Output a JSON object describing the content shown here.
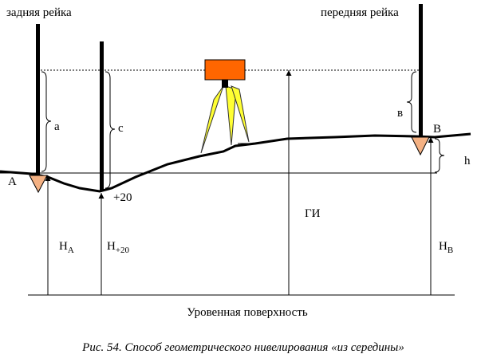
{
  "labels": {
    "back_rod": "задняя рейка",
    "front_rod": "передняя рейка",
    "a": "а",
    "c": "с",
    "b": "в",
    "point_b": "В",
    "point_a": "А",
    "h": "h",
    "plus20": "+20",
    "gi": "ГИ",
    "h_a": {
      "main": "Н",
      "sub": "А"
    },
    "h_20": {
      "main": "Н",
      "sub": "+20"
    },
    "h_b": {
      "main": "Н",
      "sub": "В"
    },
    "surface": "Уровенная поверхность"
  },
  "caption": "Рис. 54. Способ геометрического нивелирования «из середины»"
}
